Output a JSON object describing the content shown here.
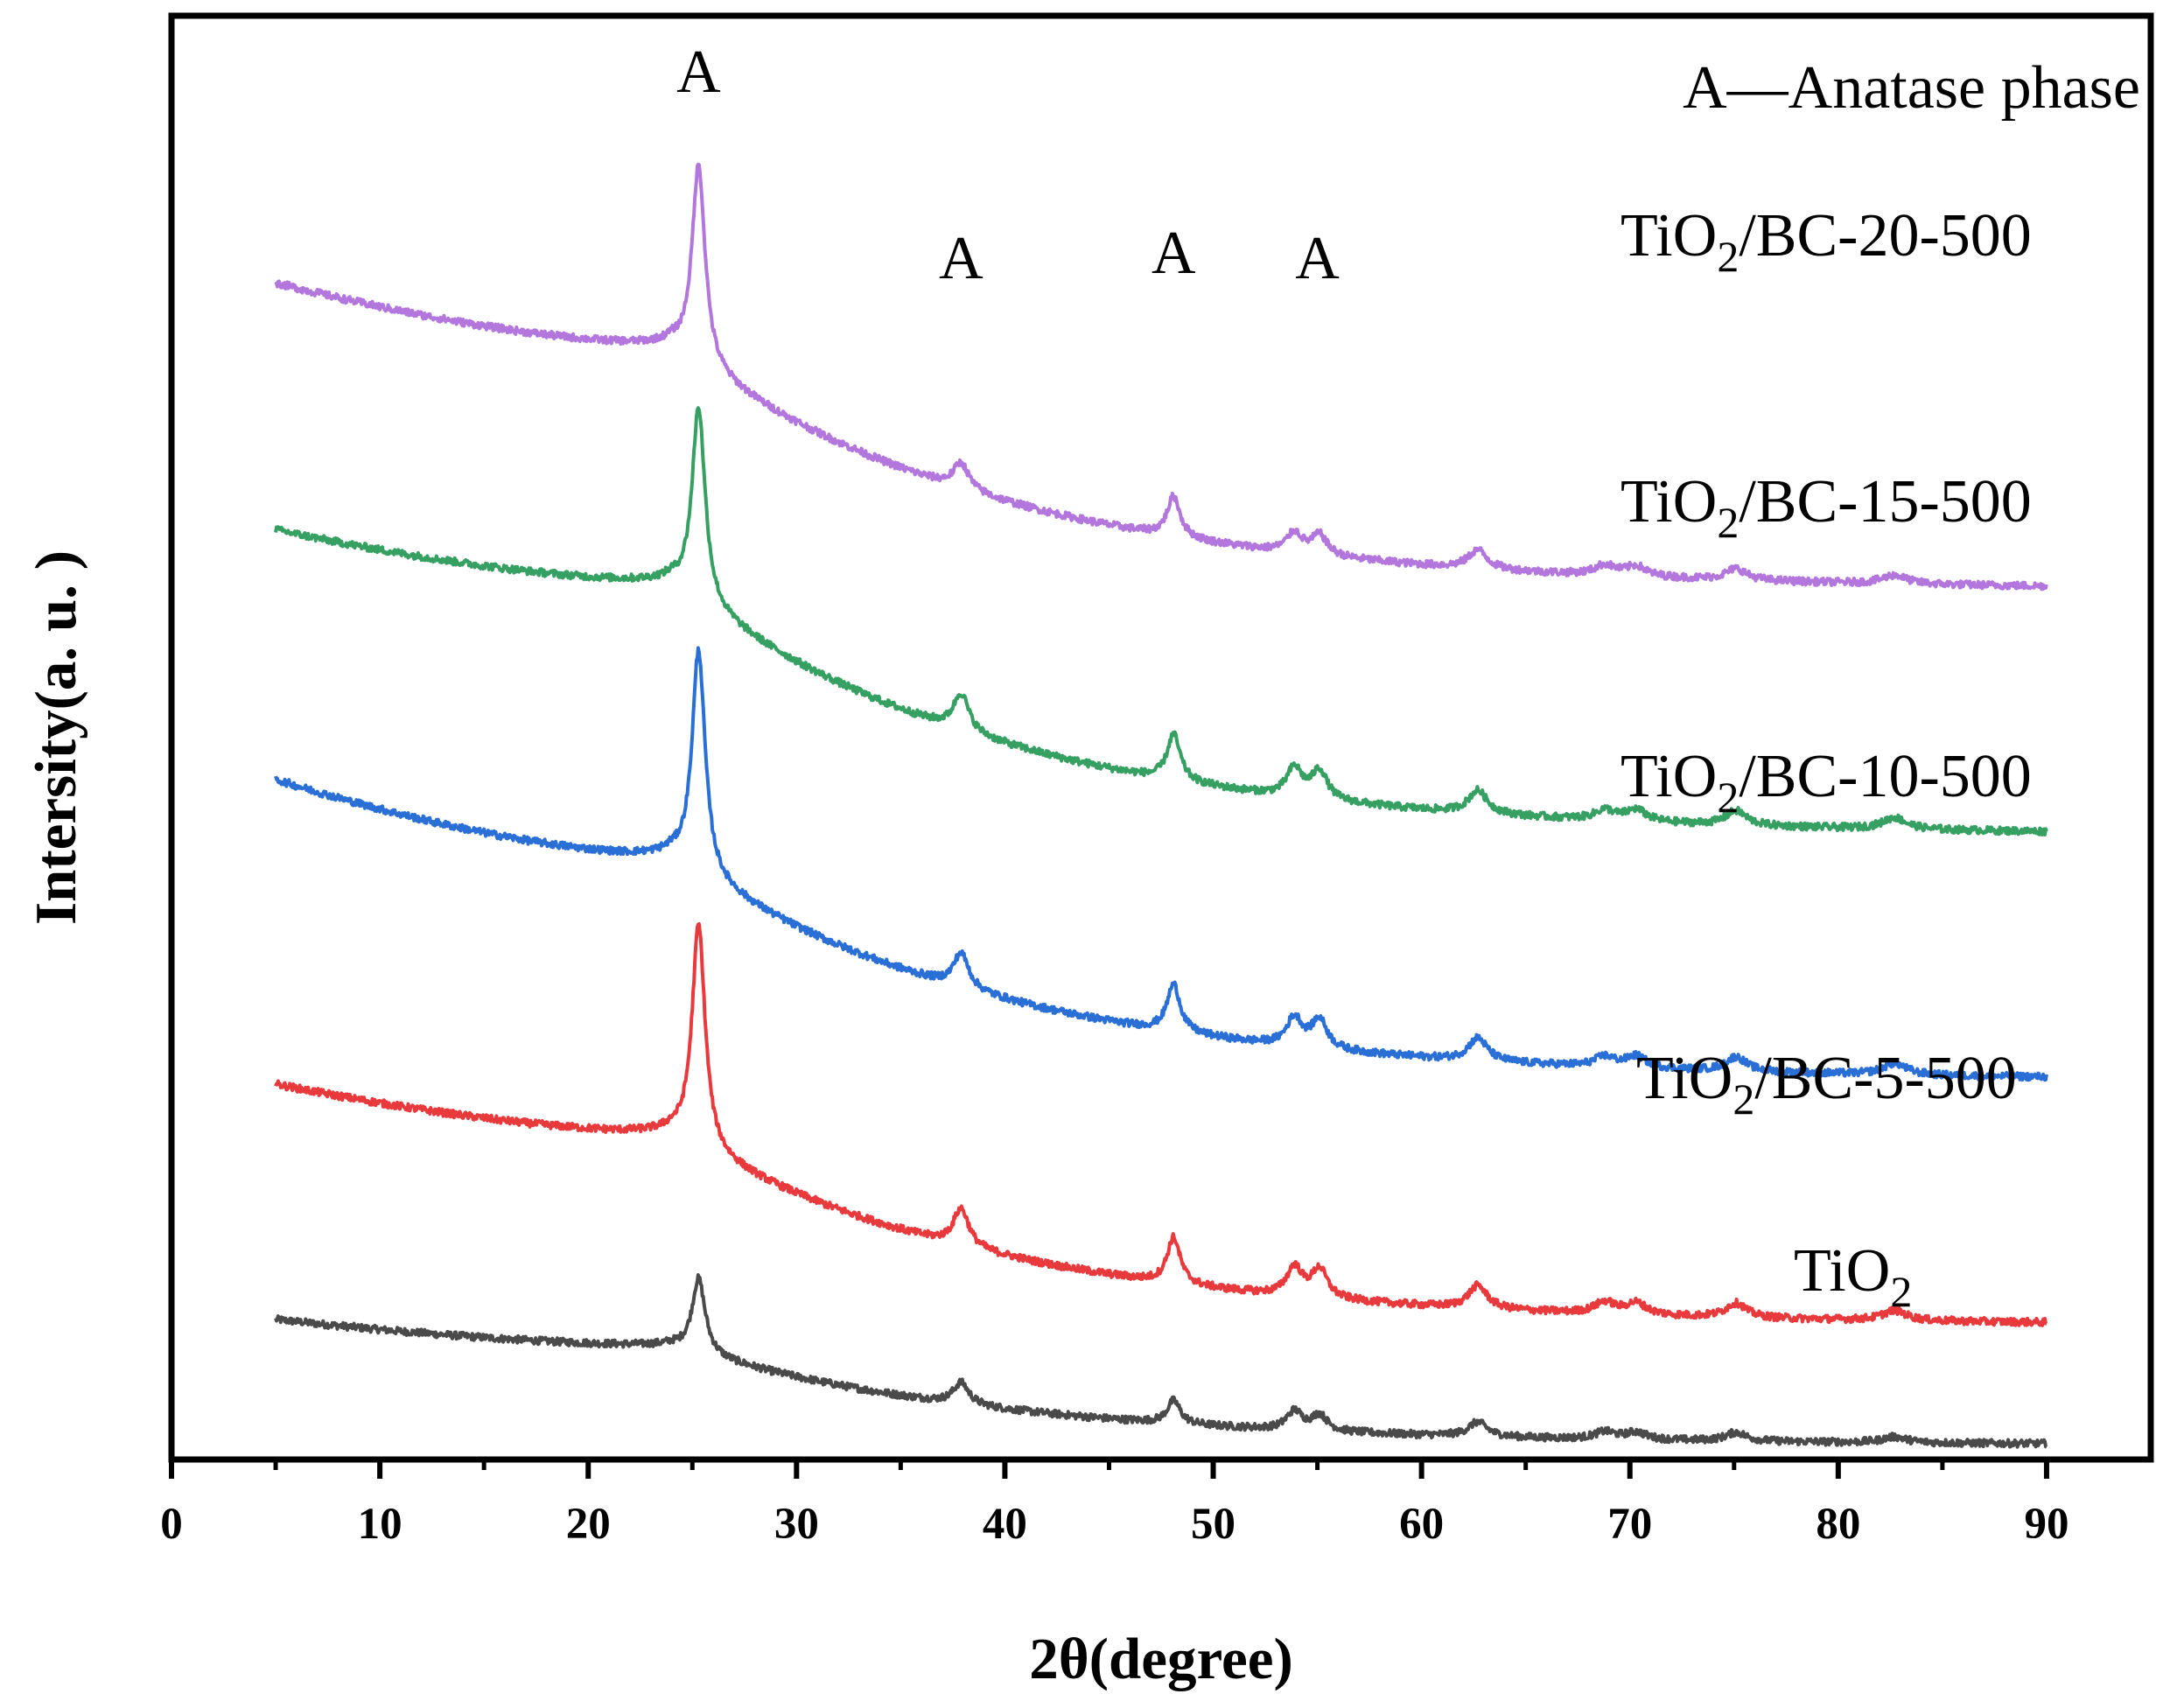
{
  "chart_data": {
    "type": "line",
    "title": "",
    "xlabel": "2θ(degree)",
    "ylabel": "Intersity(a. u. )",
    "xlim": [
      0,
      95
    ],
    "ylim": [
      0,
      10
    ],
    "xticks": [
      0,
      10,
      20,
      30,
      40,
      50,
      60,
      70,
      80,
      90
    ],
    "xtick_labels": [
      "0",
      "10",
      "20",
      "30",
      "40",
      "50",
      "60",
      "70",
      "80",
      "90"
    ],
    "legend_note": "A—Anatase phase",
    "peak_marker": "A",
    "peak_marker_positions": [
      25.3,
      37.9,
      48.1,
      55.0
    ],
    "peaks": [
      {
        "x": 25.3,
        "w": 0.38
      },
      {
        "x": 37.9,
        "w": 0.45
      },
      {
        "x": 48.1,
        "w": 0.38
      },
      {
        "x": 53.9,
        "w": 0.45
      },
      {
        "x": 55.1,
        "w": 0.45
      },
      {
        "x": 62.7,
        "w": 0.55
      },
      {
        "x": 68.8,
        "w": 0.6
      },
      {
        "x": 70.3,
        "w": 0.6
      },
      {
        "x": 75.1,
        "w": 0.6
      },
      {
        "x": 82.7,
        "w": 0.7
      }
    ],
    "series": [
      {
        "name": "TiO2",
        "label_main": "TiO",
        "label_sub": "2",
        "label_rest": "",
        "color": "#4a4a4a",
        "baseline_start": 0.97,
        "baseline_mid": 0.79,
        "baseline_end": 0.11,
        "peak_heights": [
          0.52,
          0.15,
          0.16,
          0.13,
          0.11,
          0.1,
          0.05,
          0.05,
          0.06,
          0.04
        ]
      },
      {
        "name": "TiO2/BC-5-500",
        "label_main": "TiO",
        "label_sub": "2",
        "label_rest": "/BC-5-500",
        "color": "#e8393c",
        "baseline_start": 2.6,
        "baseline_mid": 2.26,
        "baseline_end": 0.95,
        "peak_heights": [
          1.55,
          0.26,
          0.32,
          0.2,
          0.2,
          0.16,
          0.08,
          0.08,
          0.1,
          0.07
        ]
      },
      {
        "name": "TiO2/BC-10-500",
        "label_main": "TiO",
        "label_sub": "2",
        "label_rest": "/BC-10-500",
        "color": "#2a6fd6",
        "baseline_start": 4.71,
        "baseline_mid": 4.18,
        "baseline_end": 2.65,
        "peak_heights": [
          1.55,
          0.24,
          0.33,
          0.2,
          0.2,
          0.16,
          0.07,
          0.08,
          0.1,
          0.08
        ]
      },
      {
        "name": "TiO2/BC-15-500",
        "label_main": "TiO",
        "label_sub": "2",
        "label_rest": "/BC-15-500",
        "color": "#36a062",
        "baseline_start": 6.44,
        "baseline_mid": 6.08,
        "baseline_end": 4.35,
        "peak_heights": [
          1.35,
          0.26,
          0.32,
          0.2,
          0.2,
          0.16,
          0.07,
          0.08,
          0.1,
          0.08
        ]
      },
      {
        "name": "TiO2/BC-20-500",
        "label_main": "TiO",
        "label_sub": "2",
        "label_rest": "/BC-20-500",
        "color": "#b276dd",
        "baseline_start": 8.15,
        "baseline_mid": 7.72,
        "baseline_end": 6.05,
        "peak_heights": [
          1.38,
          0.18,
          0.28,
          0.14,
          0.14,
          0.13,
          0.07,
          0.07,
          0.08,
          0.06
        ]
      }
    ]
  }
}
